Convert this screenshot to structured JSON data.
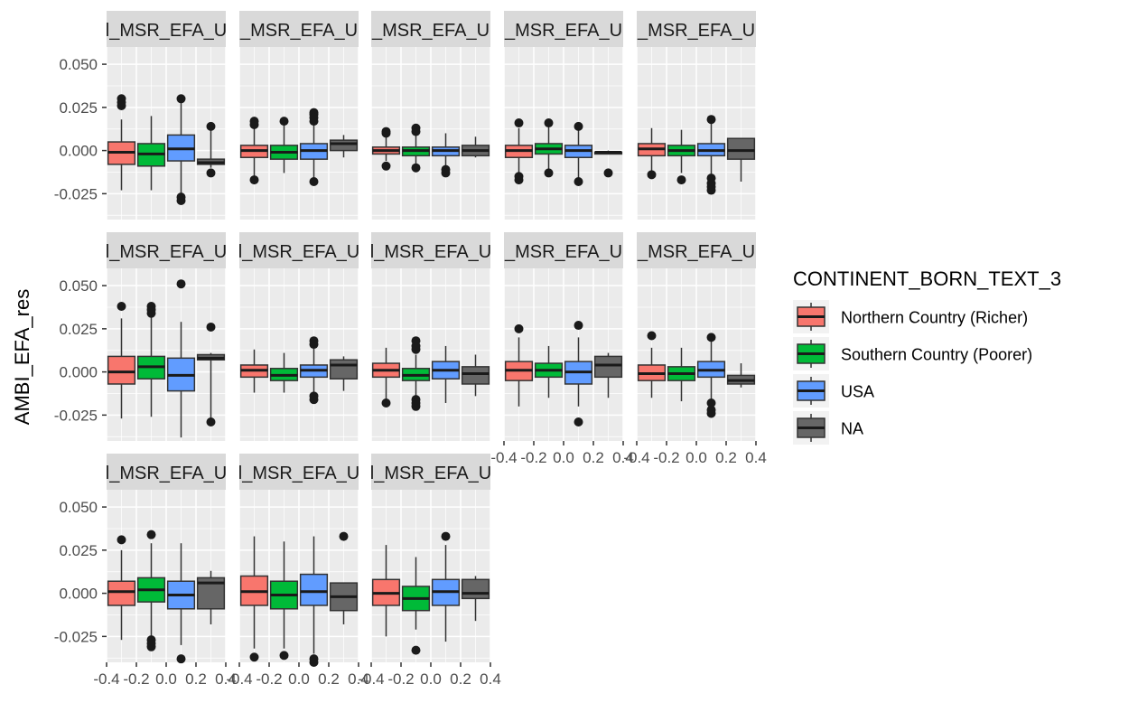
{
  "chart_data": {
    "type": "boxplot",
    "ylabel": "AMBI_EFA_res",
    "xlabel": "",
    "xlim": [
      -0.4,
      0.4
    ],
    "ylim": [
      -0.04,
      0.06
    ],
    "x_ticks": [
      "-0.4",
      "-0.2",
      "0.0",
      "0.2",
      "0.4"
    ],
    "y_ticks": [
      "0.050",
      "0.025",
      "0.000",
      "-0.025"
    ],
    "y_tick_values": [
      0.05,
      0.025,
      0.0,
      -0.025
    ],
    "grid": true,
    "legend": {
      "title": "CONTINENT_BORN_TEXT_3",
      "placement": "right",
      "entries": [
        "Northern Country (Richer)",
        "Southern Country (Poorer)",
        "USA",
        "NA"
      ],
      "colors": [
        "#F8766D",
        "#00BA38",
        "#619CFF",
        "#666666"
      ]
    },
    "panels": [
      {
        "strip": "l_MSR_EFA_U",
        "boxes": [
          {
            "group": "Northern Country (Richer)",
            "min": -0.023,
            "q1": -0.008,
            "median": -0.001,
            "q3": 0.005,
            "max": 0.018,
            "outliers": [
              0.03,
              0.028,
              0.026
            ]
          },
          {
            "group": "Southern Country (Poorer)",
            "min": -0.023,
            "q1": -0.009,
            "median": -0.002,
            "q3": 0.004,
            "max": 0.02,
            "outliers": []
          },
          {
            "group": "USA",
            "min": -0.026,
            "q1": -0.006,
            "median": 0.001,
            "q3": 0.009,
            "max": 0.029,
            "outliers": [
              0.03,
              -0.027,
              -0.029
            ]
          },
          {
            "group": "NA",
            "min": -0.01,
            "q1": -0.008,
            "median": -0.007,
            "q3": -0.005,
            "max": 0.012,
            "outliers": [
              0.014,
              -0.013
            ]
          }
        ]
      },
      {
        "strip": "_MSR_EFA_U",
        "boxes": [
          {
            "group": "Northern Country (Richer)",
            "min": -0.015,
            "q1": -0.004,
            "median": 0.0,
            "q3": 0.003,
            "max": 0.014,
            "outliers": [
              0.017,
              0.015,
              -0.017
            ]
          },
          {
            "group": "Southern Country (Poorer)",
            "min": -0.013,
            "q1": -0.005,
            "median": -0.001,
            "q3": 0.003,
            "max": 0.017,
            "outliers": [
              0.017
            ]
          },
          {
            "group": "USA",
            "min": -0.017,
            "q1": -0.005,
            "median": 0.0,
            "q3": 0.004,
            "max": 0.019,
            "outliers": [
              0.022,
              0.021,
              0.019,
              0.017,
              -0.018
            ]
          },
          {
            "group": "NA",
            "min": -0.004,
            "q1": 0.0,
            "median": 0.004,
            "q3": 0.006,
            "max": 0.009,
            "outliers": []
          }
        ]
      },
      {
        "strip": "_MSR_EFA_U",
        "boxes": [
          {
            "group": "Northern Country (Richer)",
            "min": -0.006,
            "q1": -0.002,
            "median": 0.0,
            "q3": 0.002,
            "max": 0.008,
            "outliers": [
              0.011,
              0.01,
              -0.009
            ]
          },
          {
            "group": "Southern Country (Poorer)",
            "min": -0.008,
            "q1": -0.003,
            "median": 0.0,
            "q3": 0.002,
            "max": 0.009,
            "outliers": [
              0.013,
              0.011,
              -0.01
            ]
          },
          {
            "group": "USA",
            "min": -0.01,
            "q1": -0.003,
            "median": 0.0,
            "q3": 0.002,
            "max": 0.01,
            "outliers": [
              -0.011,
              -0.013
            ]
          },
          {
            "group": "NA",
            "min": -0.004,
            "q1": -0.003,
            "median": 0.0,
            "q3": 0.003,
            "max": 0.008,
            "outliers": []
          }
        ]
      },
      {
        "strip": "_MSR_EFA_U",
        "boxes": [
          {
            "group": "Northern Country (Richer)",
            "min": -0.014,
            "q1": -0.004,
            "median": 0.0,
            "q3": 0.003,
            "max": 0.013,
            "outliers": [
              0.016,
              -0.015,
              -0.017
            ]
          },
          {
            "group": "Southern Country (Poorer)",
            "min": -0.012,
            "q1": -0.002,
            "median": 0.001,
            "q3": 0.004,
            "max": 0.015,
            "outliers": [
              0.016,
              -0.013
            ]
          },
          {
            "group": "USA",
            "min": -0.016,
            "q1": -0.004,
            "median": 0.0,
            "q3": 0.003,
            "max": 0.012,
            "outliers": [
              0.014,
              -0.018
            ]
          },
          {
            "group": "NA",
            "min": -0.002,
            "q1": -0.002,
            "median": -0.001,
            "q3": -0.001,
            "max": 0.0,
            "outliers": [
              -0.013
            ]
          }
        ]
      },
      {
        "strip": "_MSR_EFA_U",
        "boxes": [
          {
            "group": "Northern Country (Richer)",
            "min": -0.012,
            "q1": -0.003,
            "median": 0.001,
            "q3": 0.004,
            "max": 0.013,
            "outliers": [
              -0.014
            ]
          },
          {
            "group": "Southern Country (Poorer)",
            "min": -0.013,
            "q1": -0.003,
            "median": 0.0,
            "q3": 0.003,
            "max": 0.012,
            "outliers": [
              -0.017
            ]
          },
          {
            "group": "USA",
            "min": -0.014,
            "q1": -0.003,
            "median": 0.0,
            "q3": 0.004,
            "max": 0.016,
            "outliers": [
              0.018,
              -0.016,
              -0.019,
              -0.021,
              -0.023
            ]
          },
          {
            "group": "NA",
            "min": -0.018,
            "q1": -0.005,
            "median": 0.0,
            "q3": 0.007,
            "max": 0.007,
            "outliers": []
          }
        ]
      },
      {
        "strip": "l_MSR_EFA_U",
        "boxes": [
          {
            "group": "Northern Country (Richer)",
            "min": -0.027,
            "q1": -0.007,
            "median": 0.0,
            "q3": 0.009,
            "max": 0.031,
            "outliers": [
              0.038
            ]
          },
          {
            "group": "Southern Country (Poorer)",
            "min": -0.026,
            "q1": -0.004,
            "median": 0.003,
            "q3": 0.009,
            "max": 0.032,
            "outliers": [
              0.038,
              0.036,
              0.034
            ]
          },
          {
            "group": "USA",
            "min": -0.038,
            "q1": -0.011,
            "median": -0.002,
            "q3": 0.008,
            "max": 0.029,
            "outliers": [
              0.051
            ]
          },
          {
            "group": "NA",
            "min": -0.029,
            "q1": 0.007,
            "median": 0.008,
            "q3": 0.01,
            "max": 0.011,
            "outliers": [
              0.026,
              -0.029
            ]
          }
        ]
      },
      {
        "strip": "l_MSR_EFA_U",
        "boxes": [
          {
            "group": "Northern Country (Richer)",
            "min": -0.012,
            "q1": -0.003,
            "median": 0.001,
            "q3": 0.004,
            "max": 0.013,
            "outliers": []
          },
          {
            "group": "Southern Country (Poorer)",
            "min": -0.012,
            "q1": -0.005,
            "median": -0.002,
            "q3": 0.002,
            "max": 0.011,
            "outliers": []
          },
          {
            "group": "USA",
            "min": -0.013,
            "q1": -0.003,
            "median": 0.001,
            "q3": 0.004,
            "max": 0.015,
            "outliers": [
              0.018,
              0.016,
              -0.014,
              -0.016
            ]
          },
          {
            "group": "NA",
            "min": -0.011,
            "q1": -0.004,
            "median": 0.004,
            "q3": 0.007,
            "max": 0.009,
            "outliers": []
          }
        ]
      },
      {
        "strip": "l_MSR_EFA_U",
        "boxes": [
          {
            "group": "Northern Country (Richer)",
            "min": -0.016,
            "q1": -0.003,
            "median": 0.001,
            "q3": 0.005,
            "max": 0.014,
            "outliers": [
              -0.018
            ]
          },
          {
            "group": "Southern Country (Poorer)",
            "min": -0.015,
            "q1": -0.005,
            "median": -0.002,
            "q3": 0.002,
            "max": 0.01,
            "outliers": [
              0.018,
              0.015,
              0.013,
              -0.016,
              -0.018,
              -0.02
            ]
          },
          {
            "group": "USA",
            "min": -0.018,
            "q1": -0.004,
            "median": 0.001,
            "q3": 0.006,
            "max": 0.015,
            "outliers": []
          },
          {
            "group": "NA",
            "min": -0.014,
            "q1": -0.007,
            "median": -0.001,
            "q3": 0.003,
            "max": 0.01,
            "outliers": []
          }
        ]
      },
      {
        "strip": "_MSR_EFA_U",
        "boxes": [
          {
            "group": "Northern Country (Richer)",
            "min": -0.02,
            "q1": -0.005,
            "median": 0.001,
            "q3": 0.006,
            "max": 0.02,
            "outliers": [
              0.025
            ]
          },
          {
            "group": "Southern Country (Poorer)",
            "min": -0.015,
            "q1": -0.003,
            "median": 0.001,
            "q3": 0.005,
            "max": 0.015,
            "outliers": []
          },
          {
            "group": "USA",
            "min": -0.02,
            "q1": -0.007,
            "median": 0.0,
            "q3": 0.006,
            "max": 0.02,
            "outliers": [
              0.027,
              -0.029
            ]
          },
          {
            "group": "NA",
            "min": -0.015,
            "q1": -0.003,
            "median": 0.004,
            "q3": 0.009,
            "max": 0.011,
            "outliers": []
          }
        ]
      },
      {
        "strip": "_MSR_EFA_U",
        "boxes": [
          {
            "group": "Northern Country (Richer)",
            "min": -0.015,
            "q1": -0.005,
            "median": -0.001,
            "q3": 0.004,
            "max": 0.014,
            "outliers": [
              0.021
            ]
          },
          {
            "group": "Southern Country (Poorer)",
            "min": -0.017,
            "q1": -0.005,
            "median": -0.001,
            "q3": 0.003,
            "max": 0.014,
            "outliers": []
          },
          {
            "group": "USA",
            "min": -0.016,
            "q1": -0.003,
            "median": 0.001,
            "q3": 0.006,
            "max": 0.018,
            "outliers": [
              0.02,
              -0.018,
              -0.022,
              -0.024
            ]
          },
          {
            "group": "NA",
            "min": -0.009,
            "q1": -0.007,
            "median": -0.005,
            "q3": -0.002,
            "max": 0.005,
            "outliers": []
          }
        ]
      },
      {
        "strip": "l_MSR_EFA_U",
        "boxes": [
          {
            "group": "Northern Country (Richer)",
            "min": -0.027,
            "q1": -0.007,
            "median": 0.001,
            "q3": 0.007,
            "max": 0.025,
            "outliers": [
              0.031
            ]
          },
          {
            "group": "Southern Country (Poorer)",
            "min": -0.026,
            "q1": -0.005,
            "median": 0.002,
            "q3": 0.009,
            "max": 0.029,
            "outliers": [
              0.034,
              -0.027,
              -0.029,
              -0.031
            ]
          },
          {
            "group": "USA",
            "min": -0.03,
            "q1": -0.009,
            "median": -0.001,
            "q3": 0.007,
            "max": 0.029,
            "outliers": [
              -0.038
            ]
          },
          {
            "group": "NA",
            "min": -0.018,
            "q1": -0.009,
            "median": 0.006,
            "q3": 0.009,
            "max": 0.013,
            "outliers": []
          }
        ]
      },
      {
        "strip": "l_MSR_EFA_U",
        "boxes": [
          {
            "group": "Northern Country (Richer)",
            "min": -0.032,
            "q1": -0.007,
            "median": 0.001,
            "q3": 0.01,
            "max": 0.033,
            "outliers": [
              -0.037
            ]
          },
          {
            "group": "Southern Country (Poorer)",
            "min": -0.032,
            "q1": -0.009,
            "median": -0.001,
            "q3": 0.007,
            "max": 0.03,
            "outliers": [
              -0.036
            ]
          },
          {
            "group": "USA",
            "min": -0.035,
            "q1": -0.007,
            "median": 0.001,
            "q3": 0.011,
            "max": 0.033,
            "outliers": [
              -0.038,
              -0.04
            ]
          },
          {
            "group": "NA",
            "min": -0.018,
            "q1": -0.01,
            "median": -0.002,
            "q3": 0.006,
            "max": 0.006,
            "outliers": [
              0.033
            ]
          }
        ]
      },
      {
        "strip": "l_MSR_EFA_U",
        "boxes": [
          {
            "group": "Northern Country (Richer)",
            "min": -0.025,
            "q1": -0.007,
            "median": 0.0,
            "q3": 0.008,
            "max": 0.028,
            "outliers": []
          },
          {
            "group": "Southern Country (Poorer)",
            "min": -0.021,
            "q1": -0.01,
            "median": -0.003,
            "q3": 0.004,
            "max": 0.021,
            "outliers": [
              -0.033
            ]
          },
          {
            "group": "USA",
            "min": -0.028,
            "q1": -0.007,
            "median": 0.001,
            "q3": 0.008,
            "max": 0.028,
            "outliers": [
              0.033
            ]
          },
          {
            "group": "NA",
            "min": -0.016,
            "q1": -0.003,
            "median": 0.0,
            "q3": 0.008,
            "max": 0.01,
            "outliers": []
          }
        ]
      }
    ]
  }
}
